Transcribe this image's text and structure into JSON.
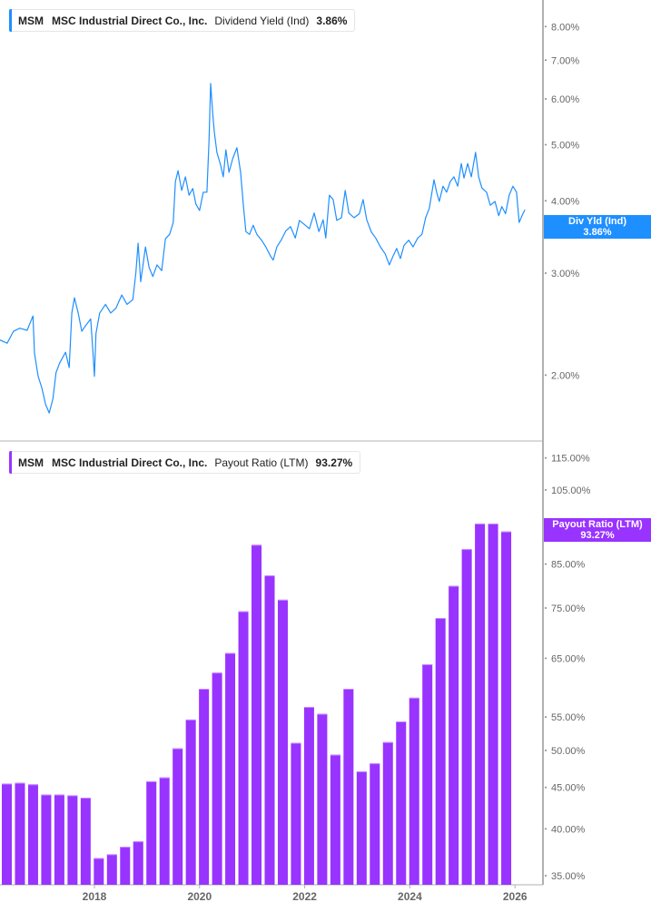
{
  "colors": {
    "yield_line": "#1e8fff",
    "payout_bar": "#9933ff",
    "axis": "#b0b0b0",
    "tick_text": "#666666"
  },
  "top_legend": {
    "ticker": "MSM",
    "company": "MSC Industrial Direct Co., Inc.",
    "metric": "Dividend Yield (Ind)",
    "value": "3.86%"
  },
  "top_tag": {
    "label": "Div Yld (Ind)",
    "value": "3.86%"
  },
  "bottom_legend": {
    "ticker": "MSM",
    "company": "MSC Industrial Direct Co., Inc.",
    "metric": "Payout Ratio (LTM)",
    "value": "93.27%"
  },
  "bottom_tag": {
    "label": "Payout Ratio (LTM)",
    "value": "93.27%"
  },
  "chart_data": [
    {
      "type": "line",
      "series": [
        {
          "name": "Dividend Yield (Ind)",
          "x_years": [
            2016.2,
            2016.34,
            2016.46,
            2016.58,
            2016.72,
            2016.83,
            2016.86,
            2016.93,
            2017.0,
            2017.07,
            2017.14,
            2017.21,
            2017.27,
            2017.34,
            2017.45,
            2017.52,
            2017.57,
            2017.62,
            2017.69,
            2017.76,
            2017.84,
            2017.93,
            2017.98,
            2018.0,
            2018.03,
            2018.1,
            2018.21,
            2018.31,
            2018.41,
            2018.52,
            2018.62,
            2018.73,
            2018.79,
            2018.83,
            2018.88,
            2018.97,
            2019.04,
            2019.11,
            2019.19,
            2019.28,
            2019.35,
            2019.43,
            2019.5,
            2019.54,
            2019.59,
            2019.66,
            2019.73,
            2019.8,
            2019.87,
            2019.93,
            2020.0,
            2020.07,
            2020.14,
            2020.18,
            2020.21,
            2020.25,
            2020.28,
            2020.33,
            2020.4,
            2020.45,
            2020.5,
            2020.56,
            2020.63,
            2020.71,
            2020.78,
            2020.83,
            2020.88,
            2020.95,
            2021.02,
            2021.09,
            2021.18,
            2021.26,
            2021.35,
            2021.4,
            2021.47,
            2021.56,
            2021.64,
            2021.73,
            2021.82,
            2021.9,
            2022.01,
            2022.09,
            2022.18,
            2022.27,
            2022.35,
            2022.4,
            2022.47,
            2022.54,
            2022.61,
            2022.7,
            2022.77,
            2022.84,
            2022.94,
            2023.04,
            2023.11,
            2023.18,
            2023.27,
            2023.35,
            2023.44,
            2023.53,
            2023.61,
            2023.68,
            2023.75,
            2023.82,
            2023.89,
            2023.98,
            2024.06,
            2024.15,
            2024.23,
            2024.3,
            2024.37,
            2024.46,
            2024.51,
            2024.56,
            2024.63,
            2024.7,
            2024.77,
            2024.84,
            2024.91,
            2024.98,
            2025.03,
            2025.1,
            2025.17,
            2025.25,
            2025.31,
            2025.37,
            2025.46,
            2025.53,
            2025.62,
            2025.69,
            2025.75,
            2025.82,
            2025.89,
            2025.96,
            2026.03,
            2026.08,
            2026.15,
            2026.19
          ],
          "values": [
            2.3,
            2.27,
            2.38,
            2.41,
            2.39,
            2.53,
            2.18,
            1.99,
            1.9,
            1.78,
            1.72,
            1.82,
            2.02,
            2.1,
            2.19,
            2.06,
            2.56,
            2.72,
            2.56,
            2.38,
            2.44,
            2.5,
            2.14,
            1.99,
            2.36,
            2.56,
            2.65,
            2.56,
            2.61,
            2.75,
            2.65,
            2.7,
            3.01,
            3.38,
            2.9,
            3.33,
            3.07,
            2.96,
            3.1,
            3.03,
            3.44,
            3.5,
            3.67,
            4.32,
            4.51,
            4.17,
            4.4,
            4.09,
            4.2,
            3.95,
            3.85,
            4.14,
            4.14,
            5.08,
            6.38,
            5.66,
            5.27,
            4.85,
            4.61,
            4.4,
            4.9,
            4.48,
            4.73,
            4.94,
            4.48,
            3.95,
            3.54,
            3.5,
            3.63,
            3.5,
            3.42,
            3.33,
            3.21,
            3.16,
            3.33,
            3.43,
            3.55,
            3.61,
            3.45,
            3.7,
            3.63,
            3.58,
            3.81,
            3.54,
            3.71,
            3.45,
            4.09,
            4.02,
            3.7,
            3.74,
            4.17,
            3.81,
            3.74,
            3.8,
            4.02,
            3.71,
            3.53,
            3.45,
            3.33,
            3.24,
            3.1,
            3.21,
            3.31,
            3.18,
            3.35,
            3.42,
            3.33,
            3.45,
            3.5,
            3.74,
            3.88,
            4.35,
            4.14,
            3.99,
            4.24,
            4.14,
            4.32,
            4.4,
            4.24,
            4.64,
            4.38,
            4.64,
            4.4,
            4.85,
            4.4,
            4.21,
            4.14,
            3.93,
            3.99,
            3.77,
            3.91,
            3.8,
            4.09,
            4.24,
            4.14,
            3.67,
            3.8,
            3.86
          ]
        }
      ],
      "y_scale": "log",
      "y_ticks": [
        "2.00%",
        "3.00%",
        "4.00%",
        "5.00%",
        "6.00%",
        "7.00%",
        "8.00%"
      ],
      "y_tick_values": [
        2,
        3,
        4,
        5,
        6,
        7,
        8
      ],
      "grid": false
    },
    {
      "type": "bar",
      "categories": [
        "2016-02",
        "2016-05",
        "2016-08",
        "2016-11",
        "2017-02",
        "2017-05",
        "2017-08",
        "2017-11",
        "2018-02",
        "2018-05",
        "2018-08",
        "2018-11",
        "2019-02",
        "2019-05",
        "2019-08",
        "2019-11",
        "2020-02",
        "2020-05",
        "2020-08",
        "2020-11",
        "2021-02",
        "2021-05",
        "2021-08",
        "2021-11",
        "2022-02",
        "2022-05",
        "2022-08",
        "2022-11",
        "2023-02",
        "2023-05",
        "2023-08",
        "2023-11",
        "2024-02",
        "2024-05",
        "2024-08",
        "2024-11",
        "2025-02",
        "2025-05",
        "2025-08",
        "2025-11"
      ],
      "series": [
        {
          "name": "Payout Ratio (LTM)",
          "values": [
            45.1,
            45.5,
            45.6,
            45.4,
            44.1,
            44.1,
            44.0,
            43.7,
            36.8,
            37.2,
            38.0,
            38.6,
            45.8,
            46.3,
            50.3,
            54.6,
            59.6,
            62.4,
            66.0,
            74.3,
            89.8,
            82.3,
            76.8,
            51.1,
            56.6,
            55.5,
            49.4,
            59.6,
            47.1,
            48.2,
            51.2,
            54.3,
            58.1,
            63.9,
            72.9,
            79.9,
            88.7,
            95.4,
            95.4,
            93.27
          ]
        }
      ],
      "y_scale": "log",
      "y_ticks": [
        "35.00%",
        "40.00%",
        "45.00%",
        "50.00%",
        "55.00%",
        "65.00%",
        "75.00%",
        "85.00%",
        "105.00%",
        "115.00%"
      ],
      "y_tick_values": [
        35,
        40,
        45,
        50,
        55,
        65,
        75,
        85,
        105,
        115
      ],
      "x_ticks": [
        "2018",
        "2020",
        "2022",
        "2024",
        "2026"
      ],
      "x_tick_values": [
        2018,
        2020,
        2022,
        2024,
        2026
      ],
      "grid": false
    }
  ]
}
